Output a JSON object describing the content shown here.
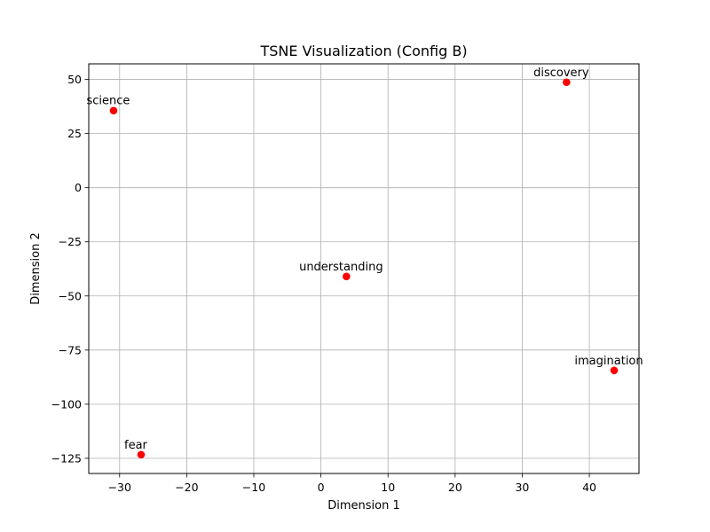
{
  "chart_data": {
    "type": "scatter",
    "title": "TSNE Visualization (Config B)",
    "xlabel": "Dimension 1",
    "ylabel": "Dimension 2",
    "xlim": [
      -34.6,
      47.4
    ],
    "ylim": [
      -132.0,
      57.2
    ],
    "xticks": [
      -30,
      -20,
      -10,
      0,
      10,
      20,
      30,
      40
    ],
    "xtick_labels": [
      "−30",
      "−20",
      "−10",
      "0",
      "10",
      "20",
      "30",
      "40"
    ],
    "yticks": [
      50,
      25,
      0,
      -25,
      -50,
      -75,
      -100,
      -125
    ],
    "ytick_labels": [
      "50",
      "25",
      "0",
      "−25",
      "−50",
      "−75",
      "−100",
      "−125"
    ],
    "grid": true,
    "marker_color": "#ff0000",
    "points": [
      {
        "label": "science",
        "x": -30.9,
        "y": 35.6
      },
      {
        "label": "discovery",
        "x": 36.6,
        "y": 48.7
      },
      {
        "label": "understanding",
        "x": 3.8,
        "y": -41.0
      },
      {
        "label": "imagination",
        "x": 43.7,
        "y": -84.4
      },
      {
        "label": "fear",
        "x": -26.8,
        "y": -123.3
      }
    ]
  }
}
